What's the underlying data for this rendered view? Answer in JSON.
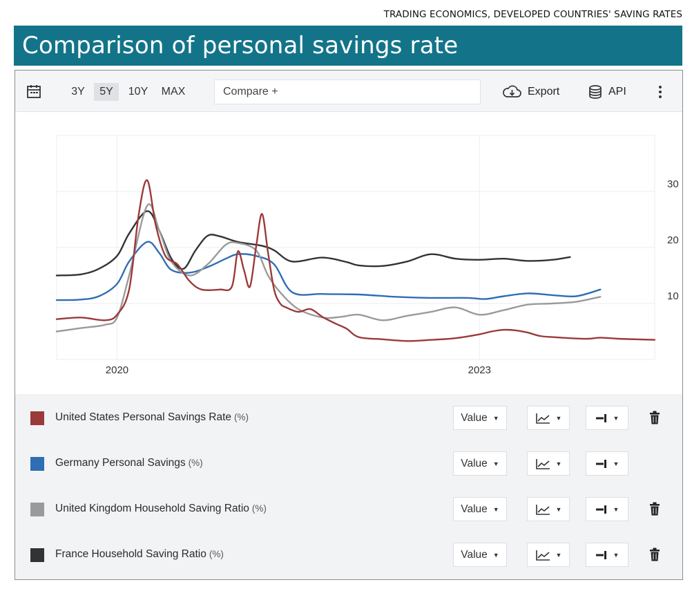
{
  "source_caption": "TRADING ECONOMICS, DEVELOPED COUNTRIES' SAVING RATES",
  "title": "Comparison of personal savings rate",
  "toolbar": {
    "ranges": [
      "3Y",
      "5Y",
      "10Y",
      "MAX"
    ],
    "active_range": "5Y",
    "compare_placeholder": "Compare +",
    "export_label": "Export",
    "api_label": "API"
  },
  "legend": [
    {
      "name": "United States Personal Savings Rate",
      "unit": "(%)",
      "color": "#9b3a3a",
      "value_label": "Value",
      "deletable": true
    },
    {
      "name": "Germany Personal Savings",
      "unit": "(%)",
      "color": "#2f6db5",
      "value_label": "Value",
      "deletable": false
    },
    {
      "name": "United Kingdom Household Saving Ratio",
      "unit": "(%)",
      "color": "#9a9a9a",
      "value_label": "Value",
      "deletable": true
    },
    {
      "name": "France Household Saving Ratio",
      "unit": "(%)",
      "color": "#333333",
      "value_label": "Value",
      "deletable": true
    }
  ],
  "chart_data": {
    "type": "line",
    "title": "Comparison of personal savings rate",
    "x_ticks": [
      {
        "x": 2020,
        "label": "2020"
      },
      {
        "x": 2023,
        "label": "2023"
      }
    ],
    "y_ticks": [
      {
        "y": 10,
        "label": "10"
      },
      {
        "y": 20,
        "label": "20"
      },
      {
        "y": 30,
        "label": "30"
      }
    ],
    "xlim": [
      2019.5,
      2024.45
    ],
    "ylim": [
      0,
      40
    ],
    "y_axis_side": "right",
    "grid": true,
    "series": [
      {
        "name": "France Household Saving Ratio",
        "color": "#333333",
        "x": [
          2019.5,
          2019.7,
          2019.85,
          2020.0,
          2020.1,
          2020.25,
          2020.35,
          2020.45,
          2020.55,
          2020.65,
          2020.75,
          2020.85,
          2021.0,
          2021.2,
          2021.3,
          2021.45,
          2021.7,
          2021.9,
          2022.0,
          2022.2,
          2022.4,
          2022.6,
          2022.8,
          2023.0,
          2023.2,
          2023.4,
          2023.6,
          2023.75
        ],
        "y": [
          15,
          15.2,
          16.2,
          18.5,
          22.5,
          26.5,
          23,
          18,
          16.2,
          19.5,
          22.1,
          22,
          21,
          20.3,
          19.5,
          17.5,
          18.2,
          17.4,
          16.8,
          16.7,
          17.5,
          18.8,
          18,
          17.8,
          18,
          17.6,
          17.8,
          18.3
        ]
      },
      {
        "name": "Germany Personal Savings",
        "color": "#2f6db5",
        "x": [
          2019.5,
          2019.7,
          2019.85,
          2020.0,
          2020.1,
          2020.25,
          2020.35,
          2020.45,
          2020.6,
          2020.75,
          2020.9,
          2021.0,
          2021.15,
          2021.3,
          2021.45,
          2021.7,
          2022.0,
          2022.3,
          2022.6,
          2022.9,
          2023.05,
          2023.2,
          2023.4,
          2023.6,
          2023.8,
          2024.0
        ],
        "y": [
          10.6,
          10.7,
          11.3,
          13.5,
          17.5,
          21,
          19,
          16,
          15.5,
          16.5,
          18,
          18.8,
          18.5,
          17,
          12,
          11.7,
          11.6,
          11.2,
          11,
          11,
          10.8,
          11.3,
          11.8,
          11.5,
          11.3,
          12.5
        ]
      },
      {
        "name": "United Kingdom Household Saving Ratio",
        "color": "#9a9a9a",
        "x": [
          2019.5,
          2019.7,
          2019.9,
          2020.0,
          2020.1,
          2020.25,
          2020.35,
          2020.45,
          2020.6,
          2020.75,
          2020.9,
          2021.0,
          2021.15,
          2021.25,
          2021.35,
          2021.5,
          2021.7,
          2021.85,
          2022.0,
          2022.2,
          2022.4,
          2022.6,
          2022.8,
          2023.0,
          2023.2,
          2023.4,
          2023.6,
          2023.8,
          2024.0
        ],
        "y": [
          5,
          5.6,
          6.2,
          7.5,
          15,
          27.5,
          23,
          17.5,
          15,
          17,
          20.5,
          20.8,
          19.5,
          15,
          12,
          9,
          7.5,
          7.6,
          8,
          7,
          7.8,
          8.5,
          9.3,
          8,
          8.8,
          9.8,
          10,
          10.3,
          11.2
        ]
      },
      {
        "name": "United States Personal Savings Rate",
        "color": "#9b3a3a",
        "x": [
          2019.5,
          2019.7,
          2019.9,
          2020.0,
          2020.1,
          2020.18,
          2020.25,
          2020.32,
          2020.4,
          2020.5,
          2020.6,
          2020.7,
          2020.85,
          2020.95,
          2021.0,
          2021.05,
          2021.1,
          2021.15,
          2021.2,
          2021.25,
          2021.3,
          2021.35,
          2021.4,
          2021.5,
          2021.6,
          2021.7,
          2021.8,
          2021.9,
          2022.0,
          2022.2,
          2022.4,
          2022.6,
          2022.8,
          2023.0,
          2023.1,
          2023.2,
          2023.3,
          2023.4,
          2023.5,
          2023.6,
          2023.75,
          2023.9,
          2024.0,
          2024.15,
          2024.3,
          2024.45
        ],
        "y": [
          7.2,
          7.5,
          7,
          8,
          12.5,
          26,
          32,
          24,
          18.5,
          17,
          14,
          12.5,
          12.5,
          13,
          19.3,
          16,
          13,
          20,
          26,
          19,
          12.5,
          10,
          9.3,
          8.5,
          9,
          7.6,
          6.5,
          5.5,
          4,
          3.6,
          3.3,
          3.5,
          3.8,
          4.5,
          5,
          5.3,
          5.2,
          4.8,
          4.2,
          4,
          3.8,
          3.7,
          3.9,
          3.7,
          3.6,
          3.5
        ]
      }
    ]
  }
}
